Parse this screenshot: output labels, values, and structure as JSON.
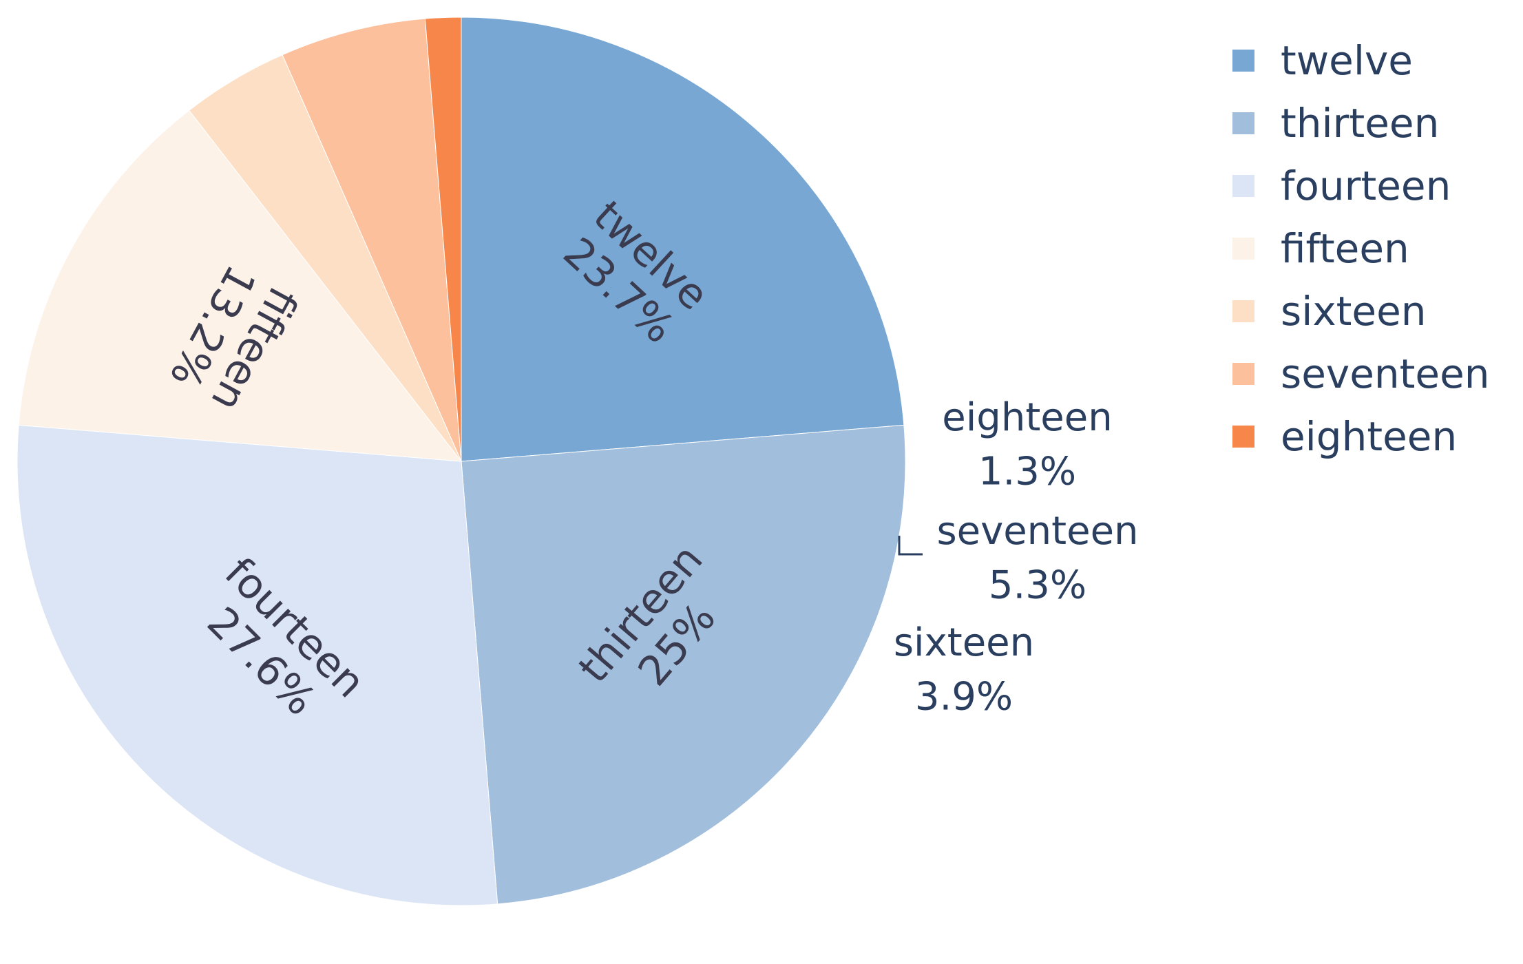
{
  "chart_data": {
    "type": "pie",
    "categories": [
      "twelve",
      "thirteen",
      "fourteen",
      "fifteen",
      "sixteen",
      "seventeen",
      "eighteen"
    ],
    "values": [
      23.7,
      25,
      27.6,
      13.2,
      3.9,
      5.3,
      1.3
    ],
    "labels": [
      "23.7%",
      "25%",
      "27.6%",
      "13.2%",
      "3.9%",
      "5.3%",
      "1.3%"
    ],
    "colors": [
      "#77a7d2",
      "#a1bedc",
      "#dbe5f5",
      "#fdf2e8",
      "#fddfc5",
      "#fcc09c",
      "#f6864a"
    ],
    "direction": "clockwise",
    "start_angle_deg": 90,
    "legend": {
      "position": "top-right",
      "items": [
        "twelve",
        "thirteen",
        "fourteen",
        "fifteen",
        "sixteen",
        "seventeen",
        "eighteen"
      ]
    }
  }
}
